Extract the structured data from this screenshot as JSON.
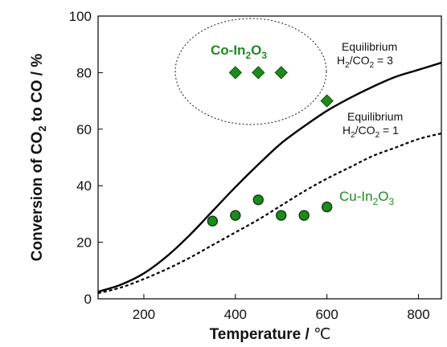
{
  "chart_data": {
    "type": "scatter",
    "xlabel": {
      "text": "Temperature",
      "sep": " / ",
      "unit": "℃"
    },
    "ylabel": {
      "pre": "Conversion of CO",
      "sub1": "2",
      "mid": " to CO / %"
    },
    "xlim": [
      100,
      850
    ],
    "ylim": [
      0,
      100
    ],
    "xticks": [
      200,
      400,
      600,
      800
    ],
    "yticks": [
      0,
      20,
      40,
      60,
      80,
      100
    ],
    "grid": false,
    "series": [
      {
        "name": "Co-In2O3",
        "label": {
          "a": "Co-In",
          "b": "2",
          "c": "O",
          "d": "3"
        },
        "marker": "diamond",
        "color": "#1e8a1e",
        "x": [
          400,
          450,
          500,
          600
        ],
        "y": [
          80,
          80,
          80,
          70
        ]
      },
      {
        "name": "Cu-In2O3",
        "label": {
          "a": "Cu-In",
          "b": "2",
          "c": "O",
          "d": "3"
        },
        "marker": "circle",
        "color": "#1e8a1e",
        "x": [
          350,
          400,
          450,
          500,
          550,
          600
        ],
        "y": [
          27.5,
          29.5,
          35,
          29.5,
          29.5,
          32.5
        ]
      }
    ],
    "curves": [
      {
        "name": "Equilibrium H2/CO2 = 3",
        "label": {
          "line1": "Equilibrium",
          "a": "H",
          "b": "2",
          "c": "/CO",
          "d": "2",
          "e": " = 3"
        },
        "style": "solid",
        "color": "#000000",
        "x": [
          100,
          150,
          200,
          250,
          300,
          350,
          400,
          450,
          500,
          550,
          600,
          650,
          700,
          750,
          800,
          850
        ],
        "y": [
          2.5,
          5,
          9,
          15,
          22.5,
          31,
          39.5,
          47.5,
          55,
          61,
          66.5,
          71,
          75,
          78.5,
          81,
          83.5
        ]
      },
      {
        "name": "Equilibrium H2/CO2 = 1",
        "label": {
          "line1": "Equilibrium",
          "a": "H",
          "b": "2",
          "c": "/CO",
          "d": "2",
          "e": " = 1"
        },
        "style": "dashed",
        "color": "#000000",
        "x": [
          100,
          150,
          200,
          250,
          300,
          350,
          400,
          450,
          500,
          550,
          600,
          650,
          700,
          750,
          800,
          850
        ],
        "y": [
          2,
          4,
          7,
          10.5,
          14.5,
          19,
          23.5,
          28,
          33,
          38,
          42.5,
          46.5,
          50.5,
          53.5,
          56.5,
          58.5
        ]
      }
    ]
  }
}
